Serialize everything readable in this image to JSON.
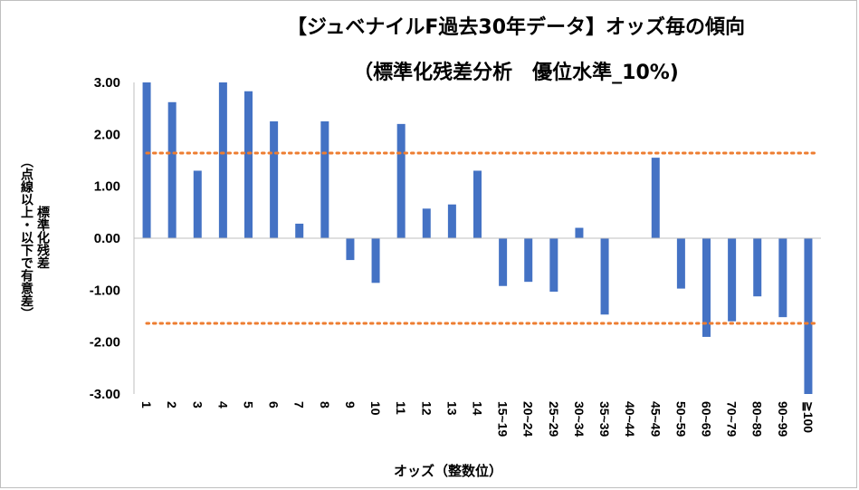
{
  "chart_data": {
    "type": "bar",
    "title": "【ジュベナイルF過去30年データ】オッズ毎の傾向",
    "subtitle": "（標準化残差分析　優位水準_10%)",
    "xlabel": "オッズ（整数位）",
    "ylabel_line1": "標準化残差",
    "ylabel_line2": "（点線以上・以下で有意差）",
    "categories": [
      "1",
      "2",
      "3",
      "4",
      "5",
      "6",
      "7",
      "8",
      "9",
      "10",
      "11",
      "12",
      "13",
      "14",
      "15~19",
      "20~24",
      "25~29",
      "30~34",
      "35~39",
      "40~44",
      "45~49",
      "50~59",
      "60~69",
      "70~79",
      "80~89",
      "90~99",
      "≧100"
    ],
    "values": [
      3.0,
      2.62,
      1.3,
      3.0,
      2.83,
      2.25,
      0.28,
      2.25,
      -0.42,
      -0.86,
      2.2,
      0.57,
      0.65,
      1.3,
      -0.92,
      -0.84,
      -1.03,
      0.2,
      -1.47,
      0.0,
      1.55,
      -0.97,
      -1.9,
      -1.6,
      -1.12,
      -1.52,
      -3.0
    ],
    "ylim": [
      -3.0,
      3.0
    ],
    "yticks": [
      "3.00",
      "2.00",
      "1.00",
      "0.00",
      "-1.00",
      "-2.00",
      "-3.00"
    ],
    "ytick_values": [
      3,
      2,
      1,
      0,
      -1,
      -2,
      -3
    ],
    "threshold_lines": [
      1.64,
      -1.64
    ],
    "bar_color": "#4472c4",
    "threshold_color": "#ed7d31",
    "grid": false
  }
}
